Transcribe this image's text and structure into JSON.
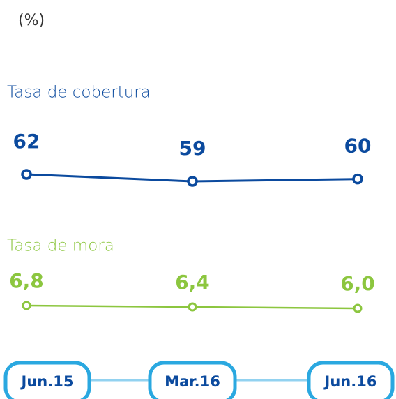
{
  "chart_data": {
    "type": "line",
    "subtitle": "(%)",
    "categories": [
      "Jun.15",
      "Mar.16",
      "Jun.16"
    ],
    "series": [
      {
        "name": "Tasa de cobertura",
        "color": "#0b4a9e",
        "values": [
          62,
          59,
          60
        ]
      },
      {
        "name": "Tasa de mora",
        "color": "#8cc63f",
        "values": [
          6.8,
          6.4,
          6.0
        ],
        "value_labels": [
          "6,8",
          "6,4",
          "6,0"
        ]
      }
    ],
    "category_color": "#2aa8e0",
    "connector_color": "#92d2f0"
  }
}
